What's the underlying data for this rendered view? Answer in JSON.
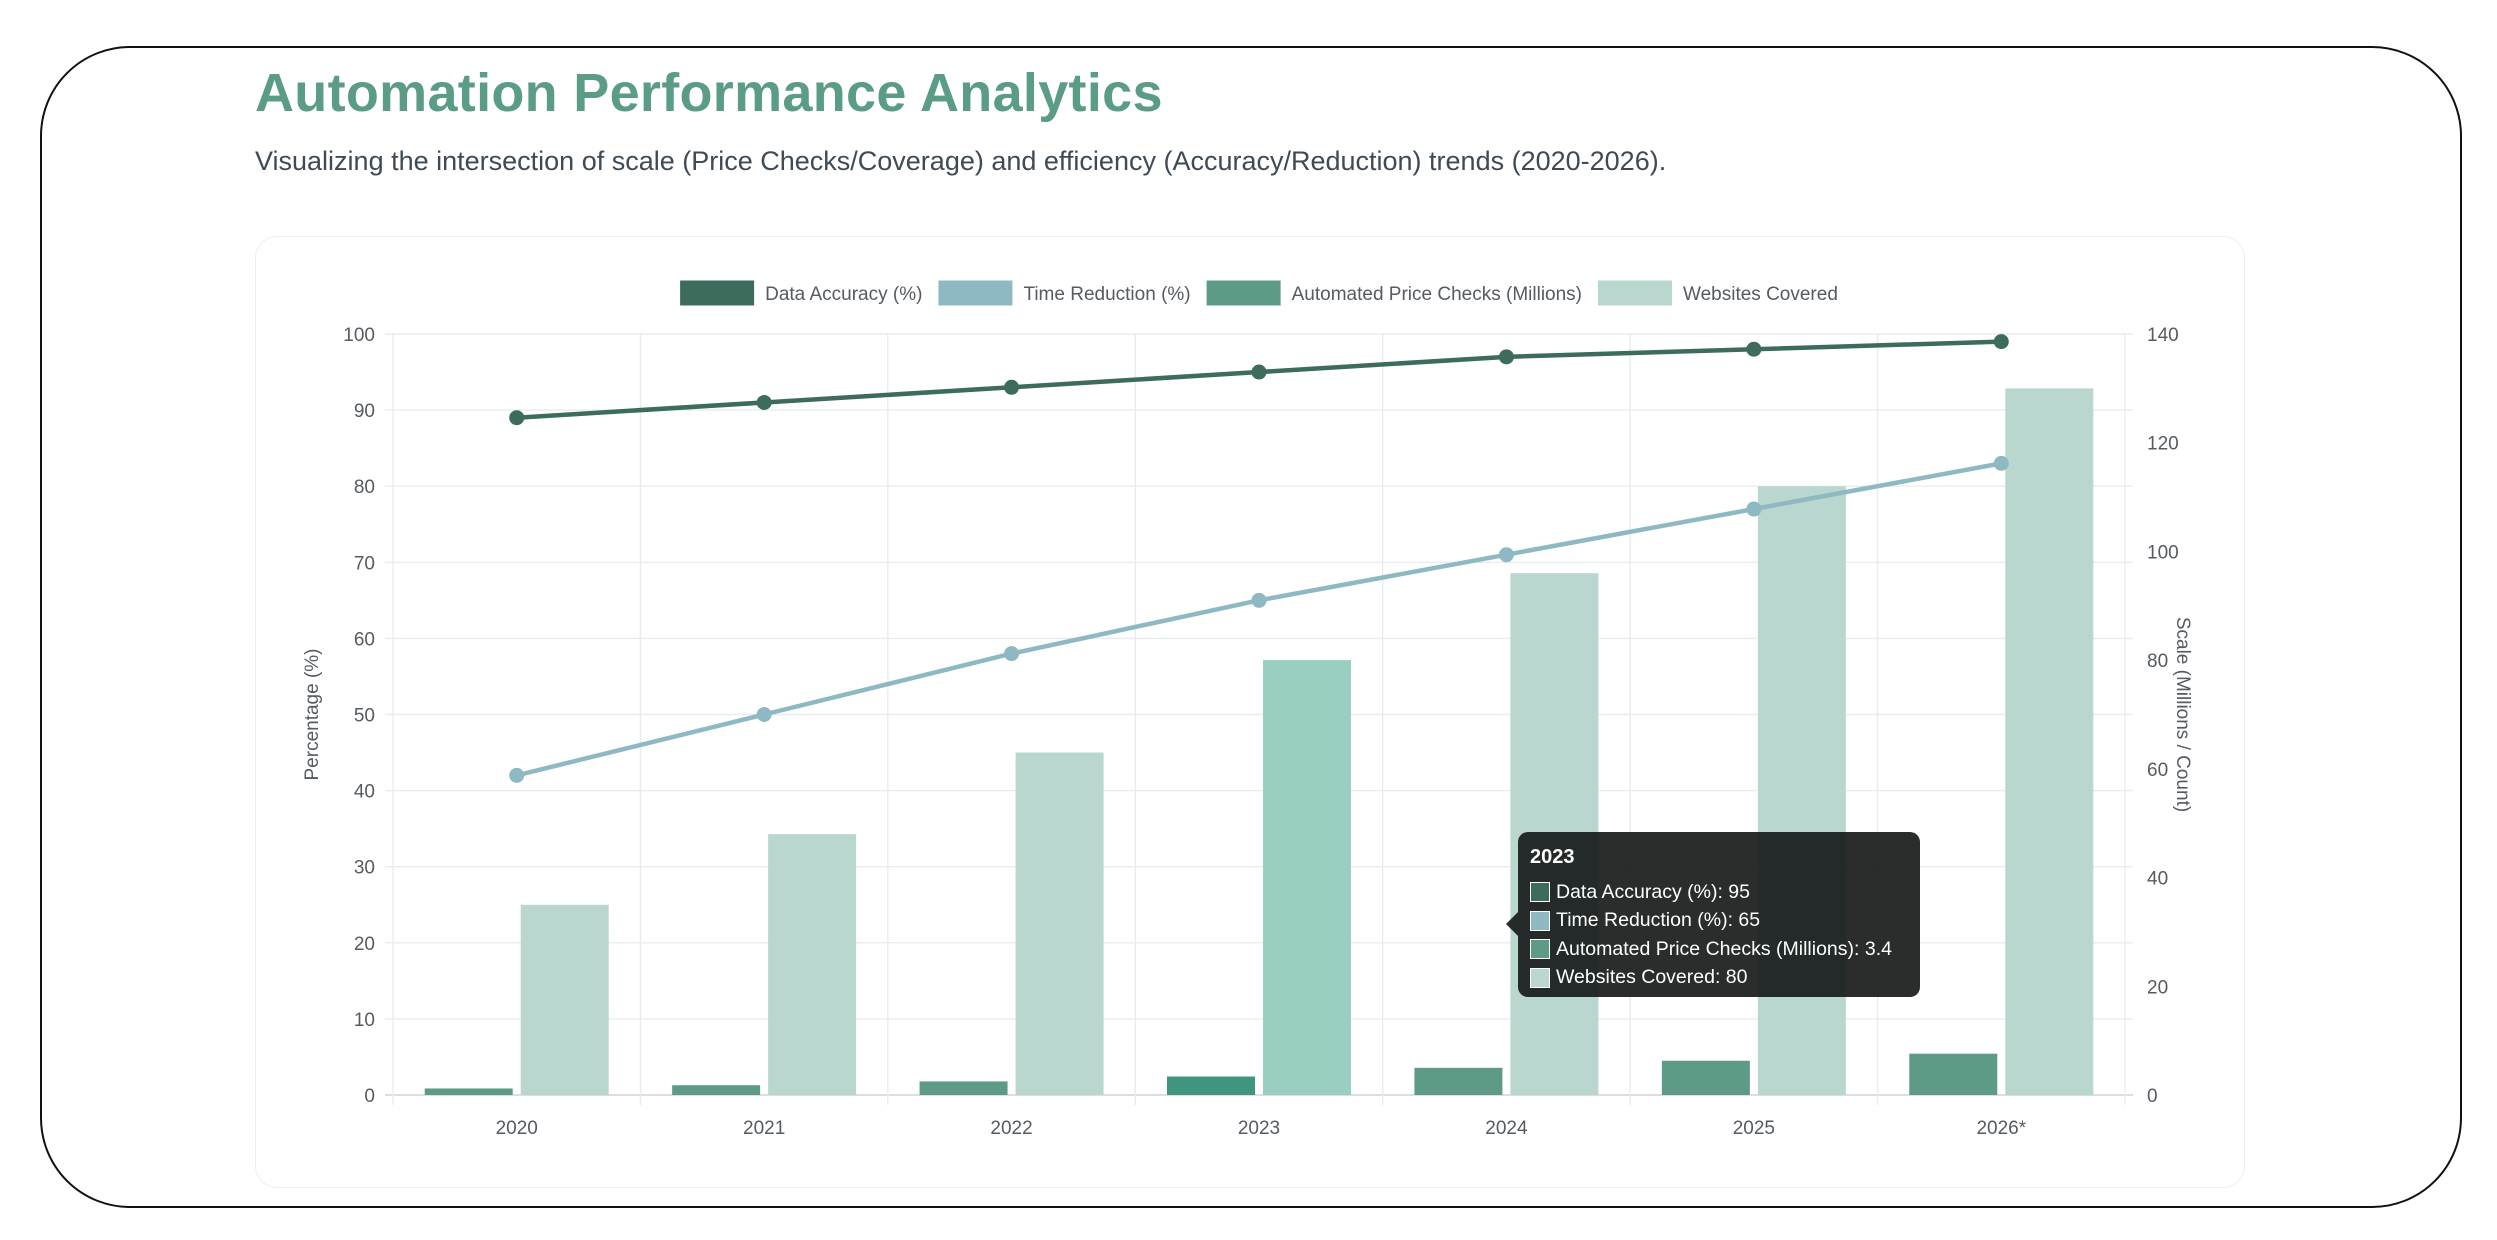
{
  "page": {
    "title": "Automation Performance Analytics",
    "subtitle": "Visualizing the intersection of scale (Price Checks/Coverage) and efficiency (Accuracy/Reduction) trends (2020-2026)."
  },
  "colors": {
    "title": "#5a9c85",
    "accuracy": "#3d6b5c",
    "time_reduction": "#8fb9c2",
    "price_checks": "#5e9b87",
    "price_checks_active": "#3f9580",
    "websites": "#b9d7cf",
    "websites_active": "#99cfc0"
  },
  "chart_data": {
    "type": "bar",
    "categories": [
      "2020",
      "2021",
      "2022",
      "2023",
      "2024",
      "2025",
      "2026*"
    ],
    "series": [
      {
        "name": "Data Accuracy (%)",
        "type": "line",
        "axis": "left",
        "values": [
          89,
          91,
          93,
          95,
          97,
          98,
          99
        ]
      },
      {
        "name": "Time Reduction (%)",
        "type": "line",
        "axis": "left",
        "values": [
          42,
          50,
          58,
          65,
          71,
          77,
          83
        ]
      },
      {
        "name": "Automated Price Checks (Millions)",
        "type": "bar",
        "axis": "right",
        "values": [
          1.2,
          1.8,
          2.5,
          3.4,
          5,
          6.3,
          7.6
        ]
      },
      {
        "name": "Websites Covered",
        "type": "bar",
        "axis": "right",
        "values": [
          35,
          48,
          63,
          80,
          96,
          112,
          130
        ]
      }
    ],
    "ylabel": "Percentage (%)",
    "ylim": [
      0,
      100
    ],
    "yticks": [
      "0",
      "10",
      "20",
      "30",
      "40",
      "50",
      "60",
      "70",
      "80",
      "90",
      "100"
    ],
    "y2label": "Scale (Millions / Count)",
    "y2lim": [
      0,
      140
    ],
    "y2ticks": [
      "0",
      "20",
      "40",
      "60",
      "80",
      "100",
      "120",
      "140"
    ],
    "grid": true,
    "legend_position": "top"
  },
  "tooltip": {
    "title": "2023",
    "rows": [
      "Data Accuracy (%): 95",
      "Time Reduction (%): 65",
      "Automated Price Checks (Millions): 3.4",
      "Websites Covered: 80"
    ]
  }
}
